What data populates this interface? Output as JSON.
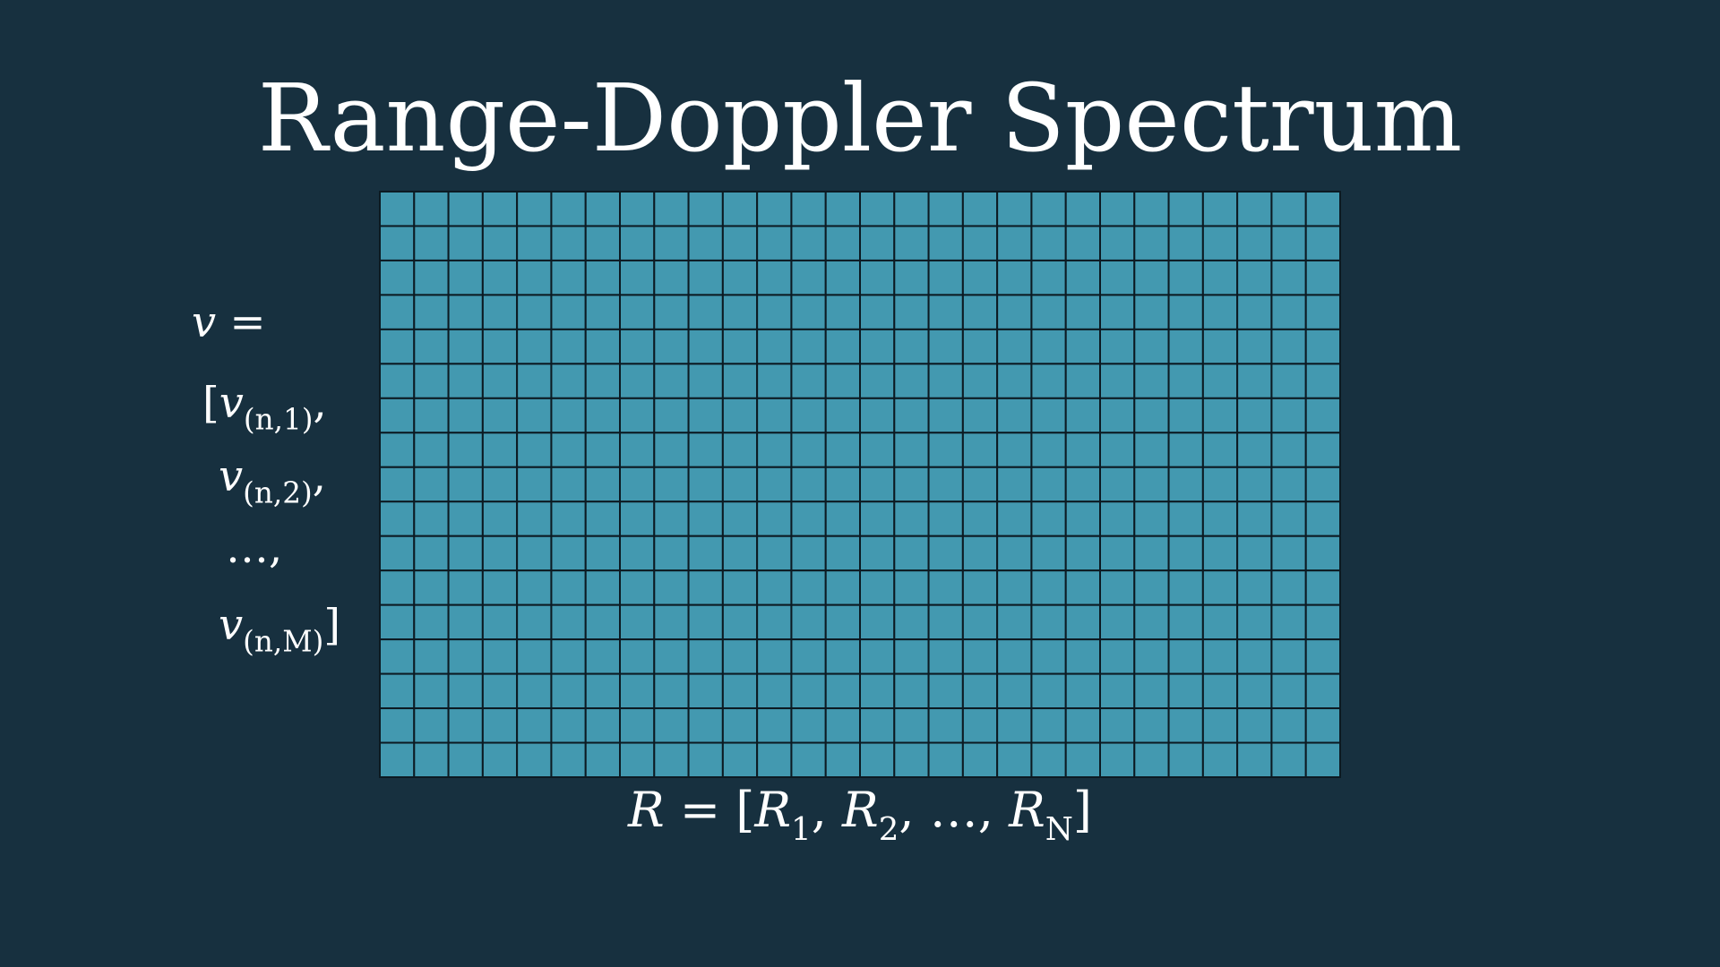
{
  "background": "#17303f",
  "title": "Range-Doppler Spectrum",
  "grid": {
    "columns": 28,
    "rows": 17,
    "cell_fill": "#4399b0",
    "line_color": "#0c1a22"
  },
  "velocity_vector": {
    "variable": "v",
    "equals": "=",
    "open_bracket": "[",
    "close_bracket": "]",
    "elements": [
      {
        "base": "v",
        "subscript": "(n,1)",
        "suffix": ","
      },
      {
        "base": "v",
        "subscript": "(n,2)",
        "suffix": ","
      },
      {
        "base": "…",
        "subscript": "",
        "suffix": ","
      },
      {
        "base": "v",
        "subscript": "(n,M)",
        "suffix": ""
      }
    ]
  },
  "range_vector": {
    "variable": "R",
    "equals": "=",
    "open_bracket": "[",
    "close_bracket": "]",
    "elements": [
      {
        "base": "R",
        "subscript": "1",
        "suffix": ","
      },
      {
        "base": "R",
        "subscript": "2",
        "suffix": ","
      },
      {
        "base": "…",
        "subscript": "",
        "suffix": ","
      },
      {
        "base": "R",
        "subscript": "N",
        "suffix": ""
      }
    ]
  }
}
